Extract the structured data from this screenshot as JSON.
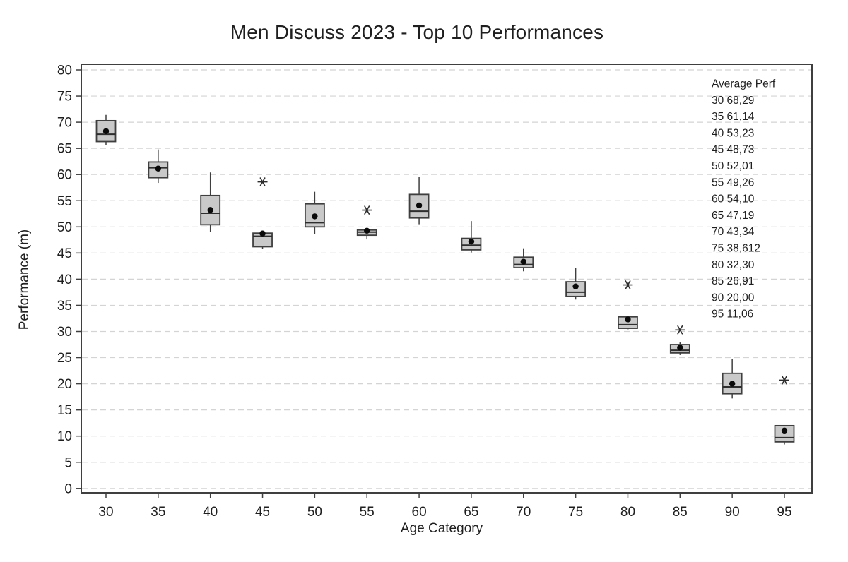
{
  "chart_data": {
    "type": "boxplot",
    "title": "Men Discuss 2023 - Top 10 Performances",
    "xlabel": "Age Category",
    "ylabel": "Performance (m)",
    "ylim": [
      0,
      80
    ],
    "ytick_step": 5,
    "grid": "horizontal-dashed",
    "legend_position": "none",
    "categories": [
      "30",
      "35",
      "40",
      "45",
      "50",
      "55",
      "60",
      "65",
      "70",
      "75",
      "80",
      "85",
      "90",
      "95"
    ],
    "boxes": [
      {
        "category": "30",
        "whisker_low": 65.6,
        "q1": 66.3,
        "median": 67.7,
        "q3": 70.3,
        "whisker_high": 71.4,
        "mean": 68.29,
        "outliers": []
      },
      {
        "category": "35",
        "whisker_low": 58.4,
        "q1": 59.4,
        "median": 61.3,
        "q3": 62.4,
        "whisker_high": 64.8,
        "mean": 61.14,
        "outliers": []
      },
      {
        "category": "40",
        "whisker_low": 49.0,
        "q1": 50.4,
        "median": 52.6,
        "q3": 56.0,
        "whisker_high": 60.4,
        "mean": 53.23,
        "outliers": []
      },
      {
        "category": "45",
        "whisker_low": 45.8,
        "q1": 46.2,
        "median": 48.2,
        "q3": 48.8,
        "whisker_high": 49.0,
        "mean": 48.73,
        "outliers": [
          58.6
        ]
      },
      {
        "category": "50",
        "whisker_low": 48.6,
        "q1": 50.0,
        "median": 50.8,
        "q3": 54.4,
        "whisker_high": 56.7,
        "mean": 52.01,
        "outliers": []
      },
      {
        "category": "55",
        "whisker_low": 47.6,
        "q1": 48.4,
        "median": 49.0,
        "q3": 49.4,
        "whisker_high": 49.8,
        "mean": 49.26,
        "outliers": [
          53.2
        ]
      },
      {
        "category": "60",
        "whisker_low": 50.5,
        "q1": 51.7,
        "median": 53.0,
        "q3": 56.2,
        "whisker_high": 59.5,
        "mean": 54.1,
        "outliers": []
      },
      {
        "category": "65",
        "whisker_low": 45.1,
        "q1": 45.6,
        "median": 46.5,
        "q3": 47.8,
        "whisker_high": 51.1,
        "mean": 47.19,
        "outliers": []
      },
      {
        "category": "70",
        "whisker_low": 41.5,
        "q1": 42.2,
        "median": 42.8,
        "q3": 44.2,
        "whisker_high": 45.9,
        "mean": 43.34,
        "outliers": []
      },
      {
        "category": "75",
        "whisker_low": 36.1,
        "q1": 36.7,
        "median": 37.5,
        "q3": 39.5,
        "whisker_high": 42.1,
        "mean": 38.612,
        "outliers": []
      },
      {
        "category": "80",
        "whisker_low": 30.2,
        "q1": 30.6,
        "median": 31.3,
        "q3": 32.8,
        "whisker_high": 33.0,
        "mean": 32.3,
        "outliers": [
          38.9
        ]
      },
      {
        "category": "85",
        "whisker_low": 25.5,
        "q1": 25.9,
        "median": 26.4,
        "q3": 27.5,
        "whisker_high": 27.9,
        "mean": 26.91,
        "outliers": [
          30.3
        ]
      },
      {
        "category": "90",
        "whisker_low": 17.2,
        "q1": 18.1,
        "median": 19.4,
        "q3": 22.0,
        "whisker_high": 24.8,
        "mean": 20.0,
        "outliers": []
      },
      {
        "category": "95",
        "whisker_low": 8.4,
        "q1": 8.9,
        "median": 9.7,
        "q3": 12.0,
        "whisker_high": 12.1,
        "mean": 11.06,
        "outliers": [
          20.7
        ]
      }
    ],
    "annotation": {
      "title": "Average Perf",
      "rows": [
        "30 68,29",
        "35 61,14",
        "40 53,23",
        "45 48,73",
        "50 52,01",
        "55 49,26",
        "60 54,10",
        "65 47,19",
        "70 43,34",
        "75 38,612",
        "80 32,30",
        "85 26,91",
        "90 20,00",
        "95 11,06"
      ]
    },
    "colors": {
      "box_fill": "#c9c9c9",
      "box_stroke": "#3f3f3f",
      "median_line": "#2e2e2e",
      "mean_dot": "#0a0a0a",
      "outlier": "#2e2e2e",
      "gridline": "#d4d4d4",
      "frame": "#3f3f3f",
      "text": "#1f1f1f"
    }
  }
}
